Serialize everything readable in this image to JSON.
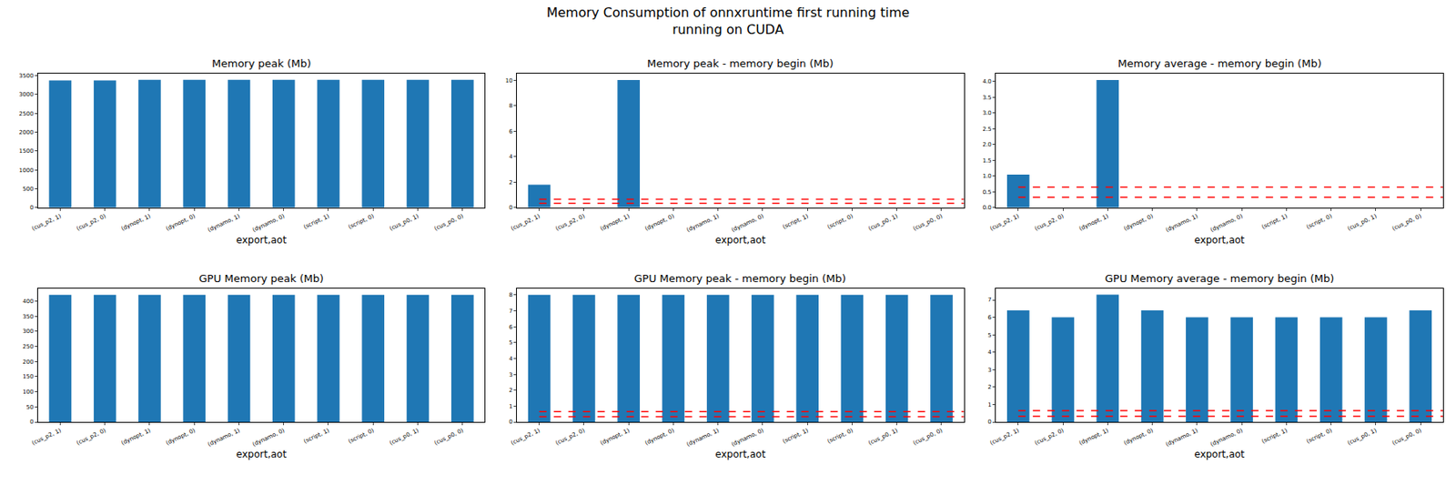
{
  "title": "Memory Consumption of onnxruntime first running time\nrunning on CUDA",
  "chart_data": [
    {
      "type": "bar",
      "title": "Memory peak (Mb)",
      "x_label": "export,aot",
      "categories": [
        "(cus_p2, 1)",
        "(cus_p2, 0)",
        "(dynopt, 1)",
        "(dynopt, 0)",
        "(dynamo, 1)",
        "(dynamo, 0)",
        "(script, 1)",
        "(script, 0)",
        "(cus_p0, 1)",
        "(cus_p0, 0)"
      ],
      "values": [
        3370,
        3370,
        3390,
        3390,
        3390,
        3390,
        3390,
        3390,
        3390,
        3390
      ],
      "color": "#1f77b4",
      "ylim": [
        0,
        3550
      ],
      "yticks": [
        0,
        500,
        1000,
        1500,
        2000,
        2500,
        3000,
        3500
      ],
      "grid": false
    },
    {
      "type": "bar",
      "title": "Memory peak - memory begin (Mb)",
      "x_label": "export,aot",
      "categories": [
        "(cus_p2, 1)",
        "(cus_p2, 0)",
        "(dynopt, 1)",
        "(dynopt, 0)",
        "(dynamo, 1)",
        "(dynamo, 0)",
        "(script, 1)",
        "(script, 0)",
        "(cus_p0, 1)",
        "(cus_p0, 0)"
      ],
      "values": [
        1.8,
        0,
        10,
        0,
        0,
        0,
        0,
        0,
        0,
        0
      ],
      "color": "#1f77b4",
      "ylim": [
        0,
        10.5
      ],
      "yticks": [
        0,
        2,
        4,
        6,
        8,
        10
      ],
      "grid": false,
      "hlines": [
        0.33,
        0.65
      ],
      "hline_color": "#ff0000"
    },
    {
      "type": "bar",
      "title": "Memory average - memory begin (Mb)",
      "x_label": "export,aot",
      "categories": [
        "(cus_p2, 1)",
        "(cus_p2, 0)",
        "(dynopt, 1)",
        "(dynopt, 0)",
        "(dynamo, 1)",
        "(dynamo, 0)",
        "(script, 1)",
        "(script, 0)",
        "(cus_p0, 1)",
        "(cus_p0, 0)"
      ],
      "values": [
        1.05,
        0,
        4.05,
        0,
        0,
        0,
        0,
        0,
        0,
        0
      ],
      "color": "#1f77b4",
      "ylim": [
        0,
        4.25
      ],
      "yticks": [
        {
          "value": 0,
          "label": "0.0"
        },
        {
          "value": 0.5,
          "label": "0.5"
        },
        {
          "value": 1,
          "label": "1.0"
        },
        {
          "value": 1.5,
          "label": "1.5"
        },
        {
          "value": 2,
          "label": "2.0"
        },
        {
          "value": 2.5,
          "label": "2.5"
        },
        {
          "value": 3,
          "label": "3.0"
        },
        {
          "value": 3.5,
          "label": "3.5"
        },
        {
          "value": 4,
          "label": "4.0"
        }
      ],
      "grid": false,
      "hlines": [
        0.33,
        0.65
      ],
      "hline_color": "#ff0000"
    },
    {
      "type": "bar",
      "title": "GPU Memory peak (Mb)",
      "x_label": "export,aot",
      "categories": [
        "(cus_p2, 1)",
        "(cus_p2, 0)",
        "(dynopt, 1)",
        "(dynopt, 0)",
        "(dynamo, 1)",
        "(dynamo, 0)",
        "(script, 1)",
        "(script, 0)",
        "(cus_p0, 1)",
        "(cus_p0, 0)"
      ],
      "values": [
        420,
        420,
        420,
        420,
        420,
        420,
        420,
        420,
        420,
        420
      ],
      "color": "#1f77b4",
      "ylim": [
        0,
        441
      ],
      "yticks": [
        0,
        50,
        100,
        150,
        200,
        250,
        300,
        350,
        400
      ],
      "grid": false
    },
    {
      "type": "bar",
      "title": "GPU Memory peak - memory begin (Mb)",
      "x_label": "export,aot",
      "categories": [
        "(cus_p2, 1)",
        "(cus_p2, 0)",
        "(dynopt, 1)",
        "(dynopt, 0)",
        "(dynamo, 1)",
        "(dynamo, 0)",
        "(script, 1)",
        "(script, 0)",
        "(cus_p0, 1)",
        "(cus_p0, 0)"
      ],
      "values": [
        8,
        8,
        8,
        8,
        8,
        8,
        8,
        8,
        8,
        8
      ],
      "color": "#1f77b4",
      "ylim": [
        0,
        8.4
      ],
      "yticks": [
        0,
        1,
        2,
        3,
        4,
        5,
        6,
        7,
        8
      ],
      "grid": false,
      "hlines": [
        0.33,
        0.65
      ],
      "hline_color": "#ff0000"
    },
    {
      "type": "bar",
      "title": "GPU Memory average - memory begin (Mb)",
      "x_label": "export,aot",
      "categories": [
        "(cus_p2, 1)",
        "(cus_p2, 0)",
        "(dynopt, 1)",
        "(dynopt, 0)",
        "(dynamo, 1)",
        "(dynamo, 0)",
        "(script, 1)",
        "(script, 0)",
        "(cus_p0, 1)",
        "(cus_p0, 0)"
      ],
      "values": [
        6.4,
        6.0,
        7.3,
        6.4,
        6.0,
        6.0,
        6.0,
        6.0,
        6.0,
        6.4
      ],
      "color": "#1f77b4",
      "ylim": [
        0,
        7.65
      ],
      "yticks": [
        0,
        1,
        2,
        3,
        4,
        5,
        6,
        7
      ],
      "grid": false,
      "hlines": [
        0.33,
        0.65
      ],
      "hline_color": "#ff0000"
    }
  ]
}
